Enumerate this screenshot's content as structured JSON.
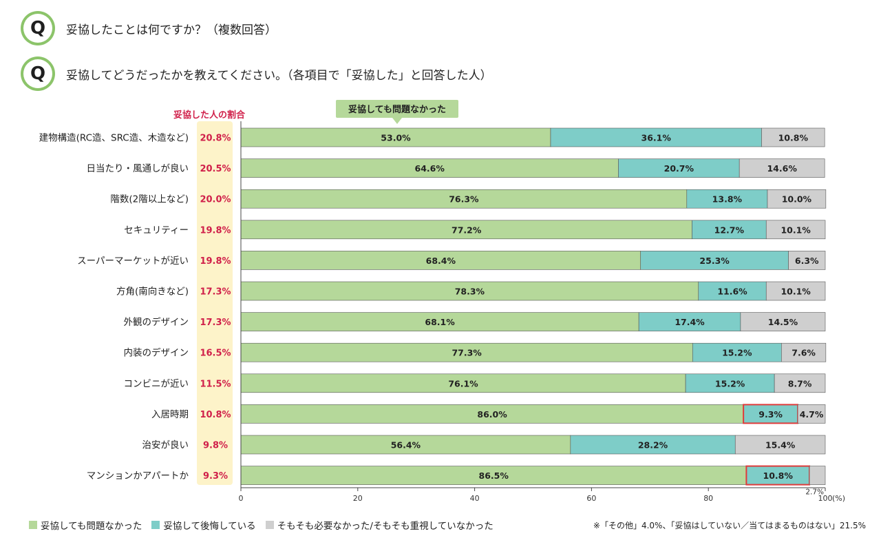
{
  "questions": [
    {
      "badge": "Q",
      "text": "妥協したことは何ですか？（複数回答）"
    },
    {
      "badge": "Q",
      "text": "妥協してどうだったかを教えてください。（各項目で「妥協した」と回答した人）"
    }
  ],
  "colors": {
    "green": "#b5d89a",
    "teal": "#7ecdc8",
    "gray": "#cfcfcf",
    "ratio_bg": "#fdf3c9",
    "ratio_text": "#d0204a",
    "highlight": "#e03a3a",
    "callout_bg": "#b5d89a"
  },
  "legend": [
    {
      "label": "妥協しても問題なかった",
      "color": "#b5d89a"
    },
    {
      "label": "妥協して後悔している",
      "color": "#7ecdc8"
    },
    {
      "label": "そもそも必要なかった/そもそも重視していなかった",
      "color": "#cfcfcf"
    }
  ],
  "footnote": "※「その他」4.0%、「妥協はしていない／当てはまるものはない」21.5%",
  "chart_data": {
    "type": "bar",
    "orientation": "horizontal-stacked-100",
    "ratio_header": "妥協した人の割合",
    "callout": "妥協しても問題なかった",
    "categories": [
      "建物構造(RC造、SRC造、木造など)",
      "日当たり・風通しが良い",
      "階数(2階以上など)",
      "セキュリティー",
      "スーパーマーケットが近い",
      "方角(南向きなど)",
      "外観のデザイン",
      "内装のデザイン",
      "コンビニが近い",
      "入居時期",
      "治安が良い",
      "マンションかアパートか"
    ],
    "ratios": [
      "20.8%",
      "20.5%",
      "20.0%",
      "19.8%",
      "19.8%",
      "17.3%",
      "17.3%",
      "16.5%",
      "11.5%",
      "10.8%",
      "9.8%",
      "9.3%"
    ],
    "series": [
      {
        "name": "妥協しても問題なかった",
        "values": [
          53.0,
          64.6,
          76.3,
          77.2,
          68.4,
          78.3,
          68.1,
          77.3,
          76.1,
          86.0,
          56.4,
          86.5
        ]
      },
      {
        "name": "妥協して後悔している",
        "values": [
          36.1,
          20.7,
          13.8,
          12.7,
          25.3,
          11.6,
          17.4,
          15.2,
          15.2,
          9.3,
          28.2,
          10.8
        ]
      },
      {
        "name": "そもそも必要なかった/そもそも重視していなかった",
        "values": [
          10.8,
          14.6,
          10.0,
          10.1,
          6.3,
          10.1,
          14.5,
          7.6,
          8.7,
          4.7,
          15.4,
          2.7
        ]
      }
    ],
    "highlighted": [
      {
        "row": 9,
        "series": 1
      },
      {
        "row": 11,
        "series": 1
      }
    ],
    "x_ticks": [
      "0",
      "20",
      "40",
      "60",
      "80",
      "100"
    ],
    "x_unit": "(%)",
    "xlim": [
      0,
      100
    ],
    "grid": false
  }
}
